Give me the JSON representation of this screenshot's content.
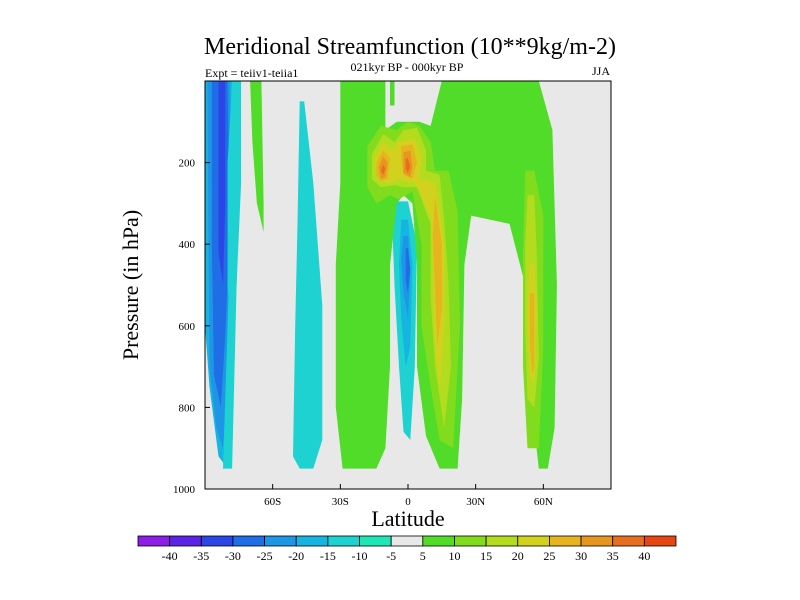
{
  "chart_data": {
    "type": "heatmap",
    "title": "Meridional Streamfunction (10**9kg/m-2)",
    "subtitle": "021kyr BP - 000kyr BP",
    "left_label": "Expt = teiiv1-teiia1",
    "season_label": "JJA",
    "xlabel": "Latitude",
    "ylabel": "Pressure (in hPa)",
    "xlim": [
      -90,
      90
    ],
    "ylim": [
      1000,
      0
    ],
    "x_ticks": [
      {
        "value": -60,
        "label": "60S"
      },
      {
        "value": -30,
        "label": "30S"
      },
      {
        "value": 0,
        "label": "0"
      },
      {
        "value": 30,
        "label": "30N"
      },
      {
        "value": 60,
        "label": "60N"
      }
    ],
    "y_ticks": [
      {
        "value": 200,
        "label": "200"
      },
      {
        "value": 400,
        "label": "400"
      },
      {
        "value": 600,
        "label": "600"
      },
      {
        "value": 800,
        "label": "800"
      },
      {
        "value": 1000,
        "label": "1000"
      }
    ],
    "background_color": "#e8e8e8",
    "colorbar": {
      "labels": [
        "-40",
        "-35",
        "-30",
        "-25",
        "-20",
        "-15",
        "-10",
        "-5",
        "5",
        "10",
        "15",
        "20",
        "25",
        "30",
        "35",
        "40"
      ],
      "colors": [
        "#8c1ee6",
        "#5a23e6",
        "#2a46e6",
        "#1f6ee6",
        "#1e96e6",
        "#16b4e0",
        "#1ed2d2",
        "#1ee6b4",
        "#e8e8e8",
        "#50dc28",
        "#82dc1e",
        "#b4dc1e",
        "#d2d21e",
        "#e6b41e",
        "#e6961e",
        "#e66e1e",
        "#e64614"
      ]
    },
    "regions": [
      {
        "level": -15,
        "vertices": [
          [
            -90,
            0
          ],
          [
            -78,
            0
          ],
          [
            -76,
            400
          ],
          [
            -78,
            700
          ],
          [
            -80,
            950
          ],
          [
            -84,
            920
          ],
          [
            -88,
            750
          ],
          [
            -90,
            600
          ]
        ]
      },
      {
        "level": -20,
        "vertices": [
          [
            -89,
            0
          ],
          [
            -79,
            0
          ],
          [
            -77,
            350
          ],
          [
            -79,
            650
          ],
          [
            -82,
            900
          ],
          [
            -85,
            850
          ],
          [
            -88,
            700
          ]
        ]
      },
      {
        "level": -25,
        "vertices": [
          [
            -87,
            0
          ],
          [
            -80,
            0
          ],
          [
            -79,
            350
          ],
          [
            -81,
            620
          ],
          [
            -83,
            800
          ],
          [
            -86,
            720
          ],
          [
            -87,
            400
          ]
        ]
      },
      {
        "level": -30,
        "vertices": [
          [
            -84,
            0
          ],
          [
            -81,
            0
          ],
          [
            -81,
            300
          ],
          [
            -82,
            500
          ],
          [
            -84,
            420
          ]
        ]
      },
      {
        "level": -10,
        "vertices": [
          [
            -78,
            0
          ],
          [
            -74,
            0
          ],
          [
            -74,
            250
          ],
          [
            -76,
            500
          ],
          [
            -78,
            650
          ],
          [
            -80,
            500
          ],
          [
            -80,
            200
          ]
        ]
      },
      {
        "level": -10,
        "vertices": [
          [
            -78,
            200
          ],
          [
            -76,
            200
          ],
          [
            -76,
            500
          ],
          [
            -78,
            950
          ],
          [
            -82,
            950
          ],
          [
            -80,
            600
          ]
        ]
      },
      {
        "level": -10,
        "vertices": [
          [
            -48,
            50
          ],
          [
            -46,
            50
          ],
          [
            -42,
            250
          ],
          [
            -38,
            550
          ],
          [
            -38,
            880
          ],
          [
            -42,
            950
          ],
          [
            -48,
            950
          ],
          [
            -51,
            920
          ],
          [
            -50,
            600
          ],
          [
            -49,
            350
          ]
        ]
      },
      {
        "level": -10,
        "vertices": [
          [
            -5,
            295
          ],
          [
            0,
            295
          ],
          [
            4,
            400
          ],
          [
            3,
            700
          ],
          [
            1,
            880
          ],
          [
            -2,
            860
          ],
          [
            -4,
            700
          ],
          [
            -6,
            500
          ],
          [
            -7,
            350
          ]
        ]
      },
      {
        "level": -15,
        "vertices": [
          [
            -3,
            340
          ],
          [
            0,
            340
          ],
          [
            2,
            450
          ],
          [
            1,
            650
          ],
          [
            -1,
            700
          ],
          [
            -3,
            580
          ],
          [
            -4,
            450
          ]
        ]
      },
      {
        "level": -20,
        "vertices": [
          [
            -2,
            380
          ],
          [
            0,
            380
          ],
          [
            1,
            470
          ],
          [
            0,
            580
          ],
          [
            -2,
            520
          ],
          [
            -3,
            440
          ]
        ]
      },
      {
        "level": -25,
        "vertices": [
          [
            -1,
            410
          ],
          [
            0,
            410
          ],
          [
            1,
            460
          ],
          [
            0,
            520
          ],
          [
            -1,
            490
          ]
        ]
      },
      {
        "level": 5,
        "vertices": [
          [
            -70,
            0
          ],
          [
            -65,
            0
          ],
          [
            -64,
            300
          ],
          [
            -64,
            370
          ],
          [
            -67,
            300
          ],
          [
            -69,
            150
          ]
        ]
      },
      {
        "level": 5,
        "vertices": [
          [
            -30,
            0
          ],
          [
            -10,
            0
          ],
          [
            -10,
            120
          ],
          [
            -5,
            100
          ],
          [
            5,
            100
          ],
          [
            10,
            110
          ],
          [
            15,
            0
          ],
          [
            50,
            0
          ],
          [
            58,
            0
          ],
          [
            64,
            120
          ],
          [
            66,
            500
          ],
          [
            65,
            850
          ],
          [
            62,
            950
          ],
          [
            58,
            950
          ],
          [
            55,
            800
          ],
          [
            52,
            500
          ],
          [
            45,
            350
          ],
          [
            28,
            330
          ],
          [
            25,
            450
          ],
          [
            24,
            780
          ],
          [
            22,
            950
          ],
          [
            14,
            950
          ],
          [
            8,
            870
          ],
          [
            4,
            700
          ],
          [
            4,
            450
          ],
          [
            2,
            300
          ],
          [
            -2,
            280
          ],
          [
            -5,
            300
          ],
          [
            -8,
            450
          ],
          [
            -8,
            700
          ],
          [
            -10,
            900
          ],
          [
            -14,
            950
          ],
          [
            -29,
            950
          ],
          [
            -32,
            800
          ],
          [
            -32,
            450
          ],
          [
            -30,
            250
          ]
        ]
      },
      {
        "level": 5,
        "vertices": [
          [
            -17,
            0
          ],
          [
            -16,
            0
          ],
          [
            -16,
            80
          ],
          [
            -17,
            80
          ]
        ]
      },
      {
        "level": 5,
        "vertices": [
          [
            -8,
            0
          ],
          [
            -6,
            0
          ],
          [
            -6,
            60
          ],
          [
            -8,
            60
          ]
        ]
      },
      {
        "level": 5,
        "vertices": [
          [
            50,
            0
          ],
          [
            52,
            0
          ],
          [
            52,
            60
          ],
          [
            50,
            60
          ]
        ]
      },
      {
        "level": 10,
        "vertices": [
          [
            -18,
            160
          ],
          [
            -12,
            110
          ],
          [
            -5,
            120
          ],
          [
            0,
            100
          ],
          [
            5,
            110
          ],
          [
            10,
            150
          ],
          [
            12,
            220
          ],
          [
            18,
            220
          ],
          [
            22,
            320
          ],
          [
            23,
            600
          ],
          [
            20,
            900
          ],
          [
            14,
            880
          ],
          [
            10,
            750
          ],
          [
            6,
            600
          ],
          [
            6,
            400
          ],
          [
            2,
            270
          ],
          [
            -4,
            290
          ],
          [
            -8,
            280
          ],
          [
            -14,
            300
          ],
          [
            -18,
            260
          ]
        ]
      },
      {
        "level": 10,
        "vertices": [
          [
            52,
            220
          ],
          [
            56,
            220
          ],
          [
            60,
            330
          ],
          [
            60,
            650
          ],
          [
            58,
            900
          ],
          [
            53,
            900
          ],
          [
            51,
            700
          ],
          [
            51,
            420
          ]
        ]
      },
      {
        "level": 15,
        "vertices": [
          [
            -16,
            180
          ],
          [
            -11,
            130
          ],
          [
            -6,
            150
          ],
          [
            -2,
            120
          ],
          [
            4,
            115
          ],
          [
            8,
            170
          ],
          [
            8,
            220
          ],
          [
            14,
            230
          ],
          [
            16,
            340
          ],
          [
            18,
            500
          ],
          [
            19,
            700
          ],
          [
            16,
            850
          ],
          [
            12,
            700
          ],
          [
            10,
            530
          ],
          [
            10,
            350
          ],
          [
            4,
            260
          ],
          [
            -2,
            260
          ],
          [
            -6,
            255
          ],
          [
            -12,
            260
          ],
          [
            -16,
            240
          ]
        ]
      },
      {
        "level": 15,
        "vertices": [
          [
            53,
            280
          ],
          [
            56,
            280
          ],
          [
            57,
            420
          ],
          [
            58,
            680
          ],
          [
            56,
            800
          ],
          [
            53,
            780
          ],
          [
            52,
            600
          ],
          [
            52,
            400
          ]
        ]
      },
      {
        "level": 20,
        "vertices": [
          [
            -15,
            190
          ],
          [
            -11,
            150
          ],
          [
            -7,
            170
          ],
          [
            -4,
            150
          ],
          [
            3,
            140
          ],
          [
            6,
            190
          ],
          [
            5,
            240
          ],
          [
            12,
            250
          ],
          [
            16,
            400
          ],
          [
            16,
            600
          ],
          [
            14,
            760
          ],
          [
            12,
            650
          ],
          [
            11,
            460
          ],
          [
            10,
            330
          ],
          [
            3,
            250
          ],
          [
            -4,
            240
          ],
          [
            -8,
            250
          ],
          [
            -13,
            245
          ]
        ]
      },
      {
        "level": 20,
        "vertices": [
          [
            54,
            450
          ],
          [
            56,
            450
          ],
          [
            57,
            560
          ],
          [
            56,
            740
          ],
          [
            54,
            720
          ],
          [
            53,
            560
          ]
        ]
      },
      {
        "level": 25,
        "vertices": [
          [
            -14,
            200
          ],
          [
            -11,
            170
          ],
          [
            -8,
            190
          ],
          [
            -9,
            240
          ],
          [
            -12,
            245
          ],
          [
            -14,
            230
          ]
        ]
      },
      {
        "level": 25,
        "vertices": [
          [
            -3,
            160
          ],
          [
            2,
            155
          ],
          [
            4,
            200
          ],
          [
            2,
            240
          ],
          [
            -2,
            230
          ],
          [
            -3,
            190
          ]
        ]
      },
      {
        "level": 25,
        "vertices": [
          [
            12,
            280
          ],
          [
            15,
            400
          ],
          [
            15,
            560
          ],
          [
            13,
            650
          ],
          [
            12,
            520
          ],
          [
            11,
            380
          ]
        ]
      },
      {
        "level": 25,
        "vertices": [
          [
            54,
            520
          ],
          [
            56,
            520
          ],
          [
            56,
            700
          ],
          [
            55,
            720
          ],
          [
            54,
            650
          ]
        ]
      },
      {
        "level": 30,
        "vertices": [
          [
            -13,
            210
          ],
          [
            -11,
            185
          ],
          [
            -9,
            200
          ],
          [
            -10,
            235
          ],
          [
            -12,
            240
          ]
        ]
      },
      {
        "level": 30,
        "vertices": [
          [
            -2,
            175
          ],
          [
            1,
            170
          ],
          [
            2,
            210
          ],
          [
            1,
            235
          ],
          [
            -2,
            225
          ]
        ]
      },
      {
        "level": 35,
        "vertices": [
          [
            -12,
            220
          ],
          [
            -11,
            205
          ],
          [
            -10,
            215
          ],
          [
            -11,
            230
          ]
        ]
      },
      {
        "level": 35,
        "vertices": [
          [
            -1,
            190
          ],
          [
            0,
            190
          ],
          [
            1,
            210
          ],
          [
            0,
            225
          ],
          [
            -1,
            215
          ]
        ]
      }
    ]
  }
}
